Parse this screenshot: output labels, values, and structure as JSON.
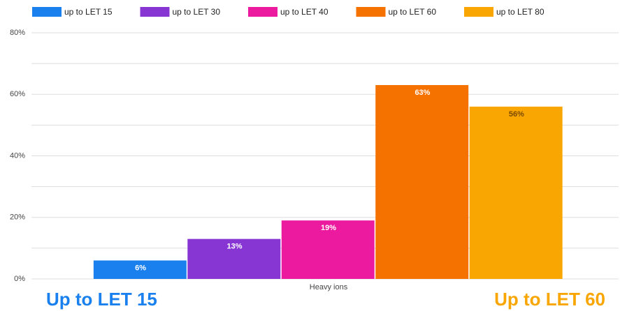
{
  "chart_data": {
    "type": "bar",
    "categories": [
      "Heavy ions"
    ],
    "series": [
      {
        "name": "up to LET 15",
        "color": "#1a80ee",
        "values": [
          6
        ],
        "value_labels": [
          "6%"
        ]
      },
      {
        "name": "up to LET 30",
        "color": "#8836d3",
        "values": [
          13
        ],
        "value_labels": [
          "13%"
        ]
      },
      {
        "name": "up to LET 40",
        "color": "#ec1a9e",
        "values": [
          19
        ],
        "value_labels": [
          "19%"
        ]
      },
      {
        "name": "up to LET 60",
        "color": "#f57200",
        "values": [
          63
        ],
        "value_labels": [
          "63%"
        ]
      },
      {
        "name": "up to LET 80",
        "color": "#f9a602",
        "values": [
          56
        ],
        "value_labels": [
          "56%"
        ]
      }
    ],
    "ylim": [
      0,
      80
    ],
    "yticks": [
      {
        "value": 0,
        "label": "0%"
      },
      {
        "value": 20,
        "label": "20%"
      },
      {
        "value": 40,
        "label": "40%"
      },
      {
        "value": 60,
        "label": "60%"
      },
      {
        "value": 80,
        "label": "80%"
      }
    ],
    "grid": true,
    "legend": "top",
    "annotations": [
      {
        "text": "Up to LET 15",
        "color": "#1a80ee"
      },
      {
        "text": "Up to LET 60",
        "color": "#f9a602"
      }
    ]
  }
}
